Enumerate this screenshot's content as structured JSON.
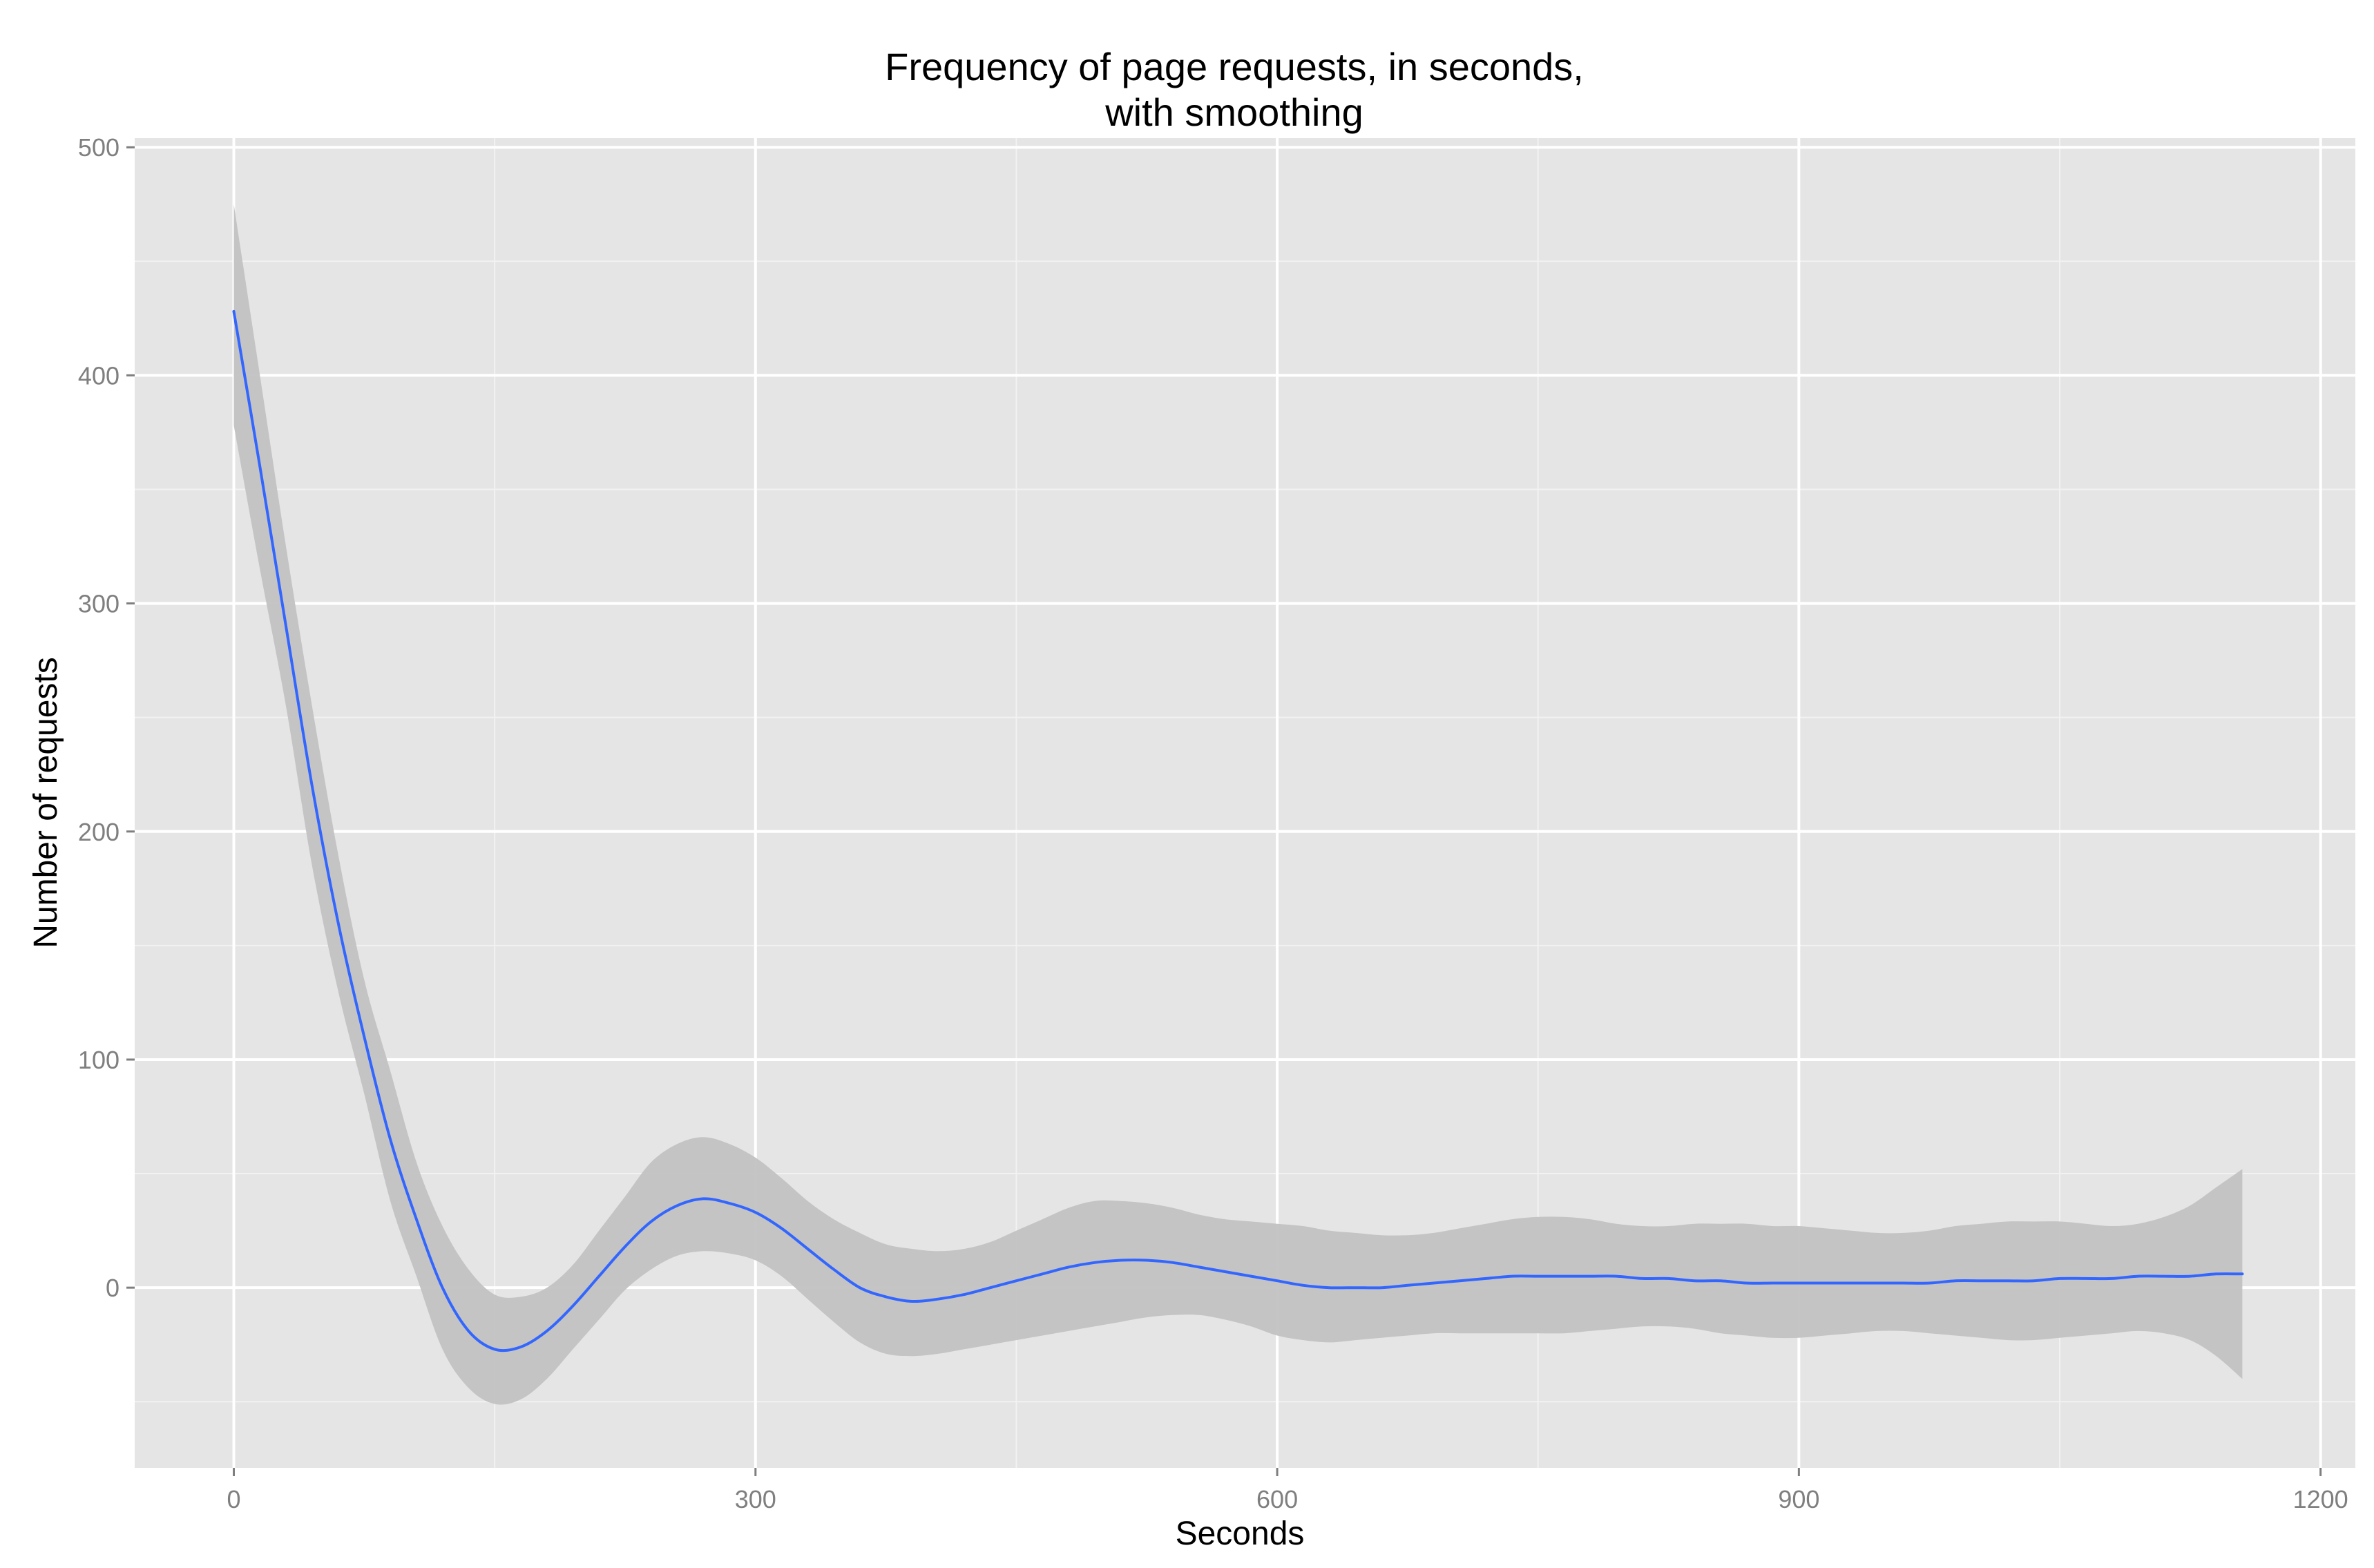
{
  "chart_data": {
    "type": "line",
    "title_lines": [
      "Frequency of page requests, in seconds,",
      "with smoothing"
    ],
    "xlabel": "Seconds",
    "ylabel": "Number of requests",
    "xlim": [
      -57,
      1220
    ],
    "ylim": [
      -79,
      504
    ],
    "x_ticks": [
      0,
      300,
      600,
      900,
      1200
    ],
    "x_tick_labels": [
      "0",
      "300",
      "600",
      "900",
      "1200"
    ],
    "y_ticks": [
      0,
      100,
      200,
      300,
      400,
      500
    ],
    "y_tick_labels": [
      "0",
      "100",
      "200",
      "300",
      "400",
      "500"
    ],
    "grid": true,
    "panel_background": "#e5e5e5",
    "grid_color": "#ffffff",
    "series": [
      {
        "line_color": "#3366ff",
        "band_color": "#c2c2c2",
        "x": [
          0,
          15,
          30,
          45,
          60,
          75,
          90,
          105,
          120,
          135,
          150,
          165,
          180,
          195,
          210,
          225,
          240,
          255,
          270,
          285,
          300,
          315,
          330,
          345,
          360,
          375,
          390,
          405,
          420,
          435,
          450,
          465,
          480,
          495,
          510,
          525,
          540,
          555,
          570,
          585,
          600,
          615,
          630,
          645,
          660,
          675,
          690,
          705,
          720,
          735,
          750,
          765,
          780,
          795,
          810,
          825,
          840,
          855,
          870,
          885,
          900,
          915,
          930,
          945,
          960,
          975,
          990,
          1005,
          1020,
          1035,
          1050,
          1065,
          1080,
          1095,
          1110,
          1125,
          1140,
          1155
        ],
        "y": [
          428,
          360,
          290,
          220,
          160,
          110,
          65,
          30,
          0,
          -19,
          -27,
          -26,
          -19,
          -8,
          5,
          18,
          29,
          36,
          39,
          37,
          33,
          26,
          17,
          8,
          0,
          -4,
          -6,
          -5,
          -3,
          0,
          3,
          6,
          9,
          11,
          12,
          12,
          11,
          9,
          7,
          5,
          3,
          1,
          0,
          0,
          0,
          1,
          2,
          3,
          4,
          5,
          5,
          5,
          5,
          5,
          4,
          4,
          3,
          3,
          2,
          2,
          2,
          2,
          2,
          2,
          2,
          2,
          3,
          3,
          3,
          3,
          4,
          4,
          4,
          5,
          5,
          5,
          6,
          6
        ],
        "upper": [
          475,
          400,
          325,
          255,
          190,
          135,
          95,
          55,
          27,
          8,
          -3,
          -4,
          0,
          10,
          25,
          40,
          55,
          63,
          66,
          63,
          57,
          48,
          38,
          30,
          24,
          19,
          17,
          16,
          17,
          20,
          25,
          30,
          35,
          38,
          38,
          37,
          35,
          32,
          30,
          29,
          28,
          27,
          25,
          24,
          23,
          23,
          24,
          26,
          28,
          30,
          31,
          31,
          30,
          28,
          27,
          27,
          28,
          28,
          28,
          27,
          27,
          26,
          25,
          24,
          24,
          25,
          27,
          28,
          29,
          29,
          29,
          28,
          27,
          28,
          31,
          36,
          44,
          52
        ],
        "lower": [
          378,
          315,
          255,
          185,
          130,
          85,
          38,
          5,
          -27,
          -44,
          -51,
          -49,
          -40,
          -27,
          -14,
          -1,
          8,
          14,
          16,
          15,
          12,
          5,
          -5,
          -15,
          -24,
          -29,
          -30,
          -29,
          -27,
          -25,
          -23,
          -21,
          -19,
          -17,
          -15,
          -13,
          -12,
          -12,
          -14,
          -17,
          -21,
          -23,
          -24,
          -23,
          -22,
          -21,
          -20,
          -20,
          -20,
          -20,
          -20,
          -20,
          -19,
          -18,
          -17,
          -17,
          -18,
          -20,
          -21,
          -22,
          -22,
          -21,
          -20,
          -19,
          -19,
          -20,
          -21,
          -22,
          -23,
          -23,
          -22,
          -21,
          -20,
          -19,
          -20,
          -23,
          -30,
          -40
        ]
      }
    ]
  }
}
